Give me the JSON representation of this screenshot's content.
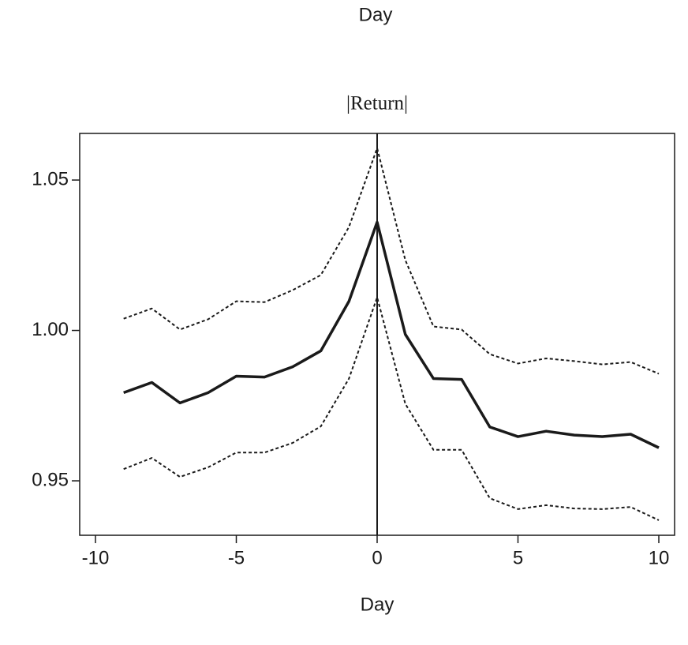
{
  "chart_data": {
    "type": "line",
    "top_label": "Day",
    "title": "|Return|",
    "x_label": "Day",
    "x": [
      -9,
      -8,
      -7,
      -6,
      -5,
      -4,
      -3,
      -2,
      -1,
      0,
      1,
      2,
      3,
      4,
      5,
      6,
      7,
      8,
      9,
      10
    ],
    "series": [
      {
        "color": "#1a1a1a",
        "style": "solid",
        "values": [
          0.9793,
          0.9827,
          0.9759,
          0.9793,
          0.9848,
          0.9845,
          0.9879,
          0.9932,
          1.0097,
          1.036,
          0.9987,
          0.984,
          0.9837,
          0.9679,
          0.9647,
          0.9665,
          0.9652,
          0.9647,
          0.9655,
          0.961
        ]
      },
      {
        "color": "#1a1a1a",
        "style": "dashed",
        "values": [
          1.0039,
          1.0073,
          1.0003,
          1.0037,
          1.0097,
          1.0094,
          1.0134,
          1.0184,
          1.0344,
          1.0606,
          1.0234,
          1.0013,
          1.0003,
          0.9921,
          0.989,
          0.9907,
          0.9898,
          0.9887,
          0.9895,
          0.9856
        ]
      },
      {
        "color": "#1a1a1a",
        "style": "dashed",
        "values": [
          0.9539,
          0.9576,
          0.9513,
          0.9545,
          0.9594,
          0.9594,
          0.9626,
          0.9681,
          0.984,
          1.011,
          0.9756,
          0.9603,
          0.9603,
          0.9442,
          0.9406,
          0.9419,
          0.9408,
          0.9406,
          0.9413,
          0.9369
        ]
      }
    ],
    "vline": 0,
    "xlim": [
      -10.56,
      10.56
    ],
    "xticks": [
      -10,
      -5,
      0,
      5,
      10
    ],
    "ylim": [
      0.9319,
      1.0655
    ],
    "yticks": [
      0.95,
      {
        "value": 1,
        "label": "1.00"
      },
      1.05
    ],
    "grid": false
  }
}
